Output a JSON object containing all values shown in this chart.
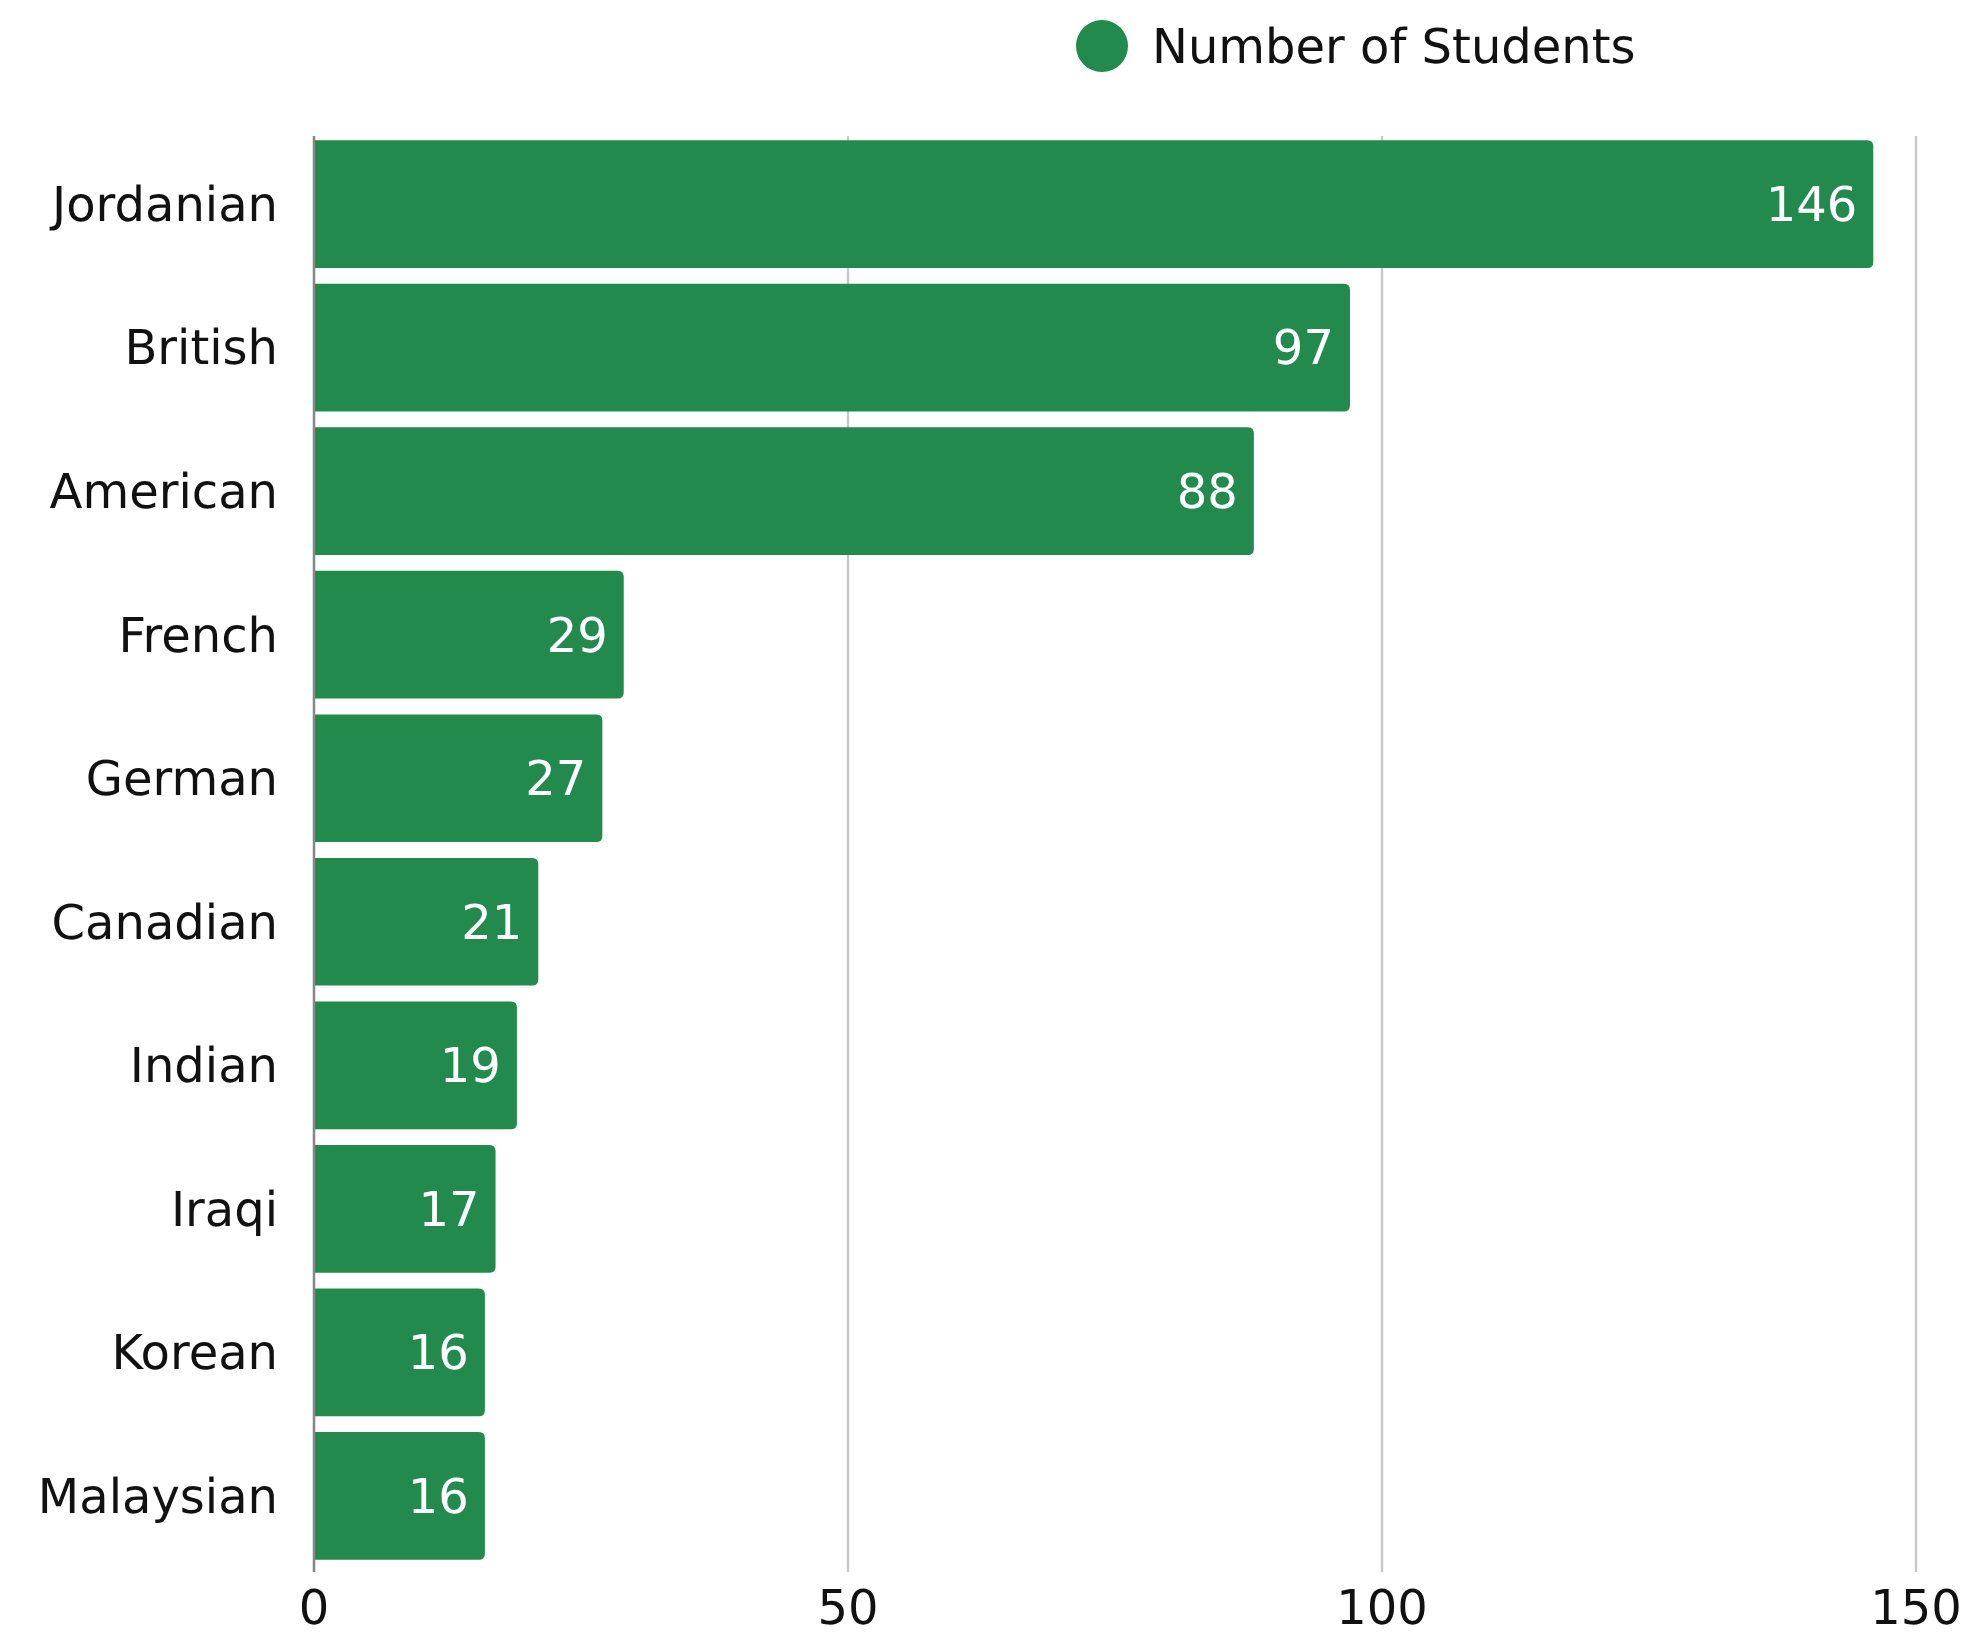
{
  "chart_data": {
    "type": "bar",
    "orientation": "horizontal",
    "categories": [
      "Jordanian",
      "British",
      "American",
      "French",
      "German",
      "Canadian",
      "Indian",
      "Iraqi",
      "Korean",
      "Malaysian"
    ],
    "series": [
      {
        "name": "Number of Students",
        "color": "#218a4c",
        "values": [
          146,
          97,
          88,
          29,
          27,
          21,
          19,
          17,
          16,
          16
        ]
      }
    ],
    "xlim": [
      0,
      150
    ],
    "xticks": [
      0,
      50,
      100,
      150
    ],
    "grid": "x",
    "legend": "top",
    "data_labels": true
  }
}
